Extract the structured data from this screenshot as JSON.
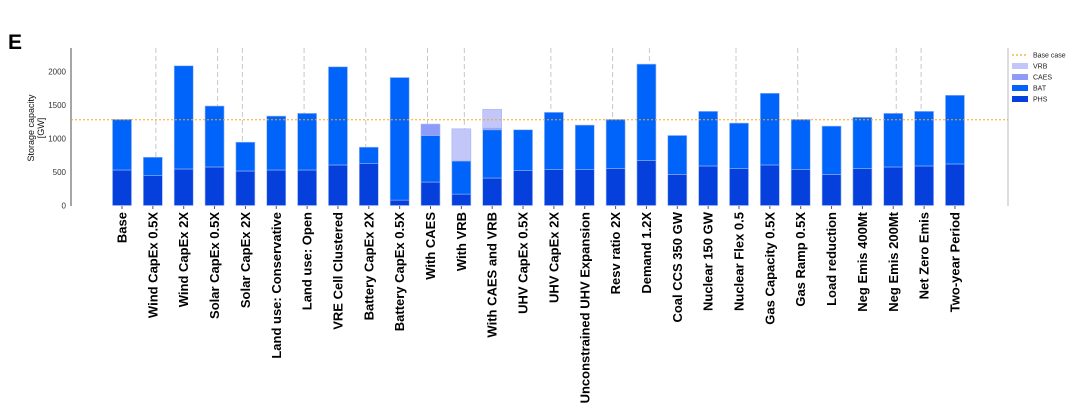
{
  "panel_label": "E",
  "chart_data": {
    "type": "bar",
    "stacked": true,
    "ylabel": "Storage capacity",
    "ylabel_unit": "[GW]",
    "ylim": [
      0,
      2300
    ],
    "yticks": [
      "0",
      "500",
      "1000",
      "1500",
      "2000"
    ],
    "grid": false,
    "legend_position": "right",
    "reference_line": {
      "name": "Base case",
      "value": 1280,
      "color": "#f5a623"
    },
    "categories": [
      "Base",
      "Wind CapEx 0.5X",
      "Wind CapEx 2X",
      "Solar CapEx 0.5X",
      "Solar CapEx 2X",
      "Land use: Conservative",
      "Land use: Open",
      "VRE Cell Clustered",
      "Battery CapEx 2X",
      "Battery CapEx 0.5X",
      "With CAES",
      "With VRB",
      "With CAES and VRB",
      "UHV CapEx 0.5X",
      "UHV CapEx 2X",
      "Unconstrained UHV Expansion",
      "Resv ratio 2X",
      "Demand 1.2X",
      "Coal CCS 350 GW",
      "Nuclear 150 GW",
      "Nuclear Flex 0.5",
      "Gas Capacity 0.5X",
      "Gas Ramp 0.5X",
      "Load reduction",
      "Neg Emis 400Mt",
      "Neg Emis 200Mt",
      "Net Zero Emis",
      "Two-year Period"
    ],
    "series": [
      {
        "name": "PHS",
        "color": "#0540dc",
        "values": [
          530,
          445,
          545,
          575,
          515,
          530,
          530,
          605,
          630,
          80,
          350,
          170,
          410,
          520,
          535,
          535,
          550,
          670,
          465,
          590,
          550,
          605,
          535,
          465,
          550,
          575,
          590,
          620
        ]
      },
      {
        "name": "BAT",
        "color": "#0064fa",
        "values": [
          755,
          275,
          1540,
          910,
          430,
          805,
          845,
          1465,
          240,
          1830,
          695,
          495,
          720,
          610,
          855,
          665,
          735,
          1440,
          580,
          815,
          680,
          1070,
          750,
          720,
          765,
          800,
          815,
          1025
        ]
      },
      {
        "name": "CAES",
        "color": "#8f9bf8",
        "values": [
          0,
          0,
          0,
          0,
          0,
          0,
          0,
          0,
          0,
          0,
          170,
          0,
          25,
          0,
          0,
          0,
          0,
          0,
          0,
          0,
          0,
          0,
          0,
          0,
          0,
          0,
          0,
          0
        ]
      },
      {
        "name": "VRB",
        "color": "#c2c6f8",
        "values": [
          0,
          0,
          0,
          0,
          0,
          0,
          0,
          0,
          0,
          0,
          0,
          480,
          280,
          0,
          0,
          0,
          0,
          0,
          0,
          0,
          0,
          0,
          0,
          0,
          0,
          0,
          0,
          0
        ]
      }
    ],
    "legend_order": [
      "Base case",
      "VRB",
      "CAES",
      "BAT",
      "PHS"
    ]
  }
}
